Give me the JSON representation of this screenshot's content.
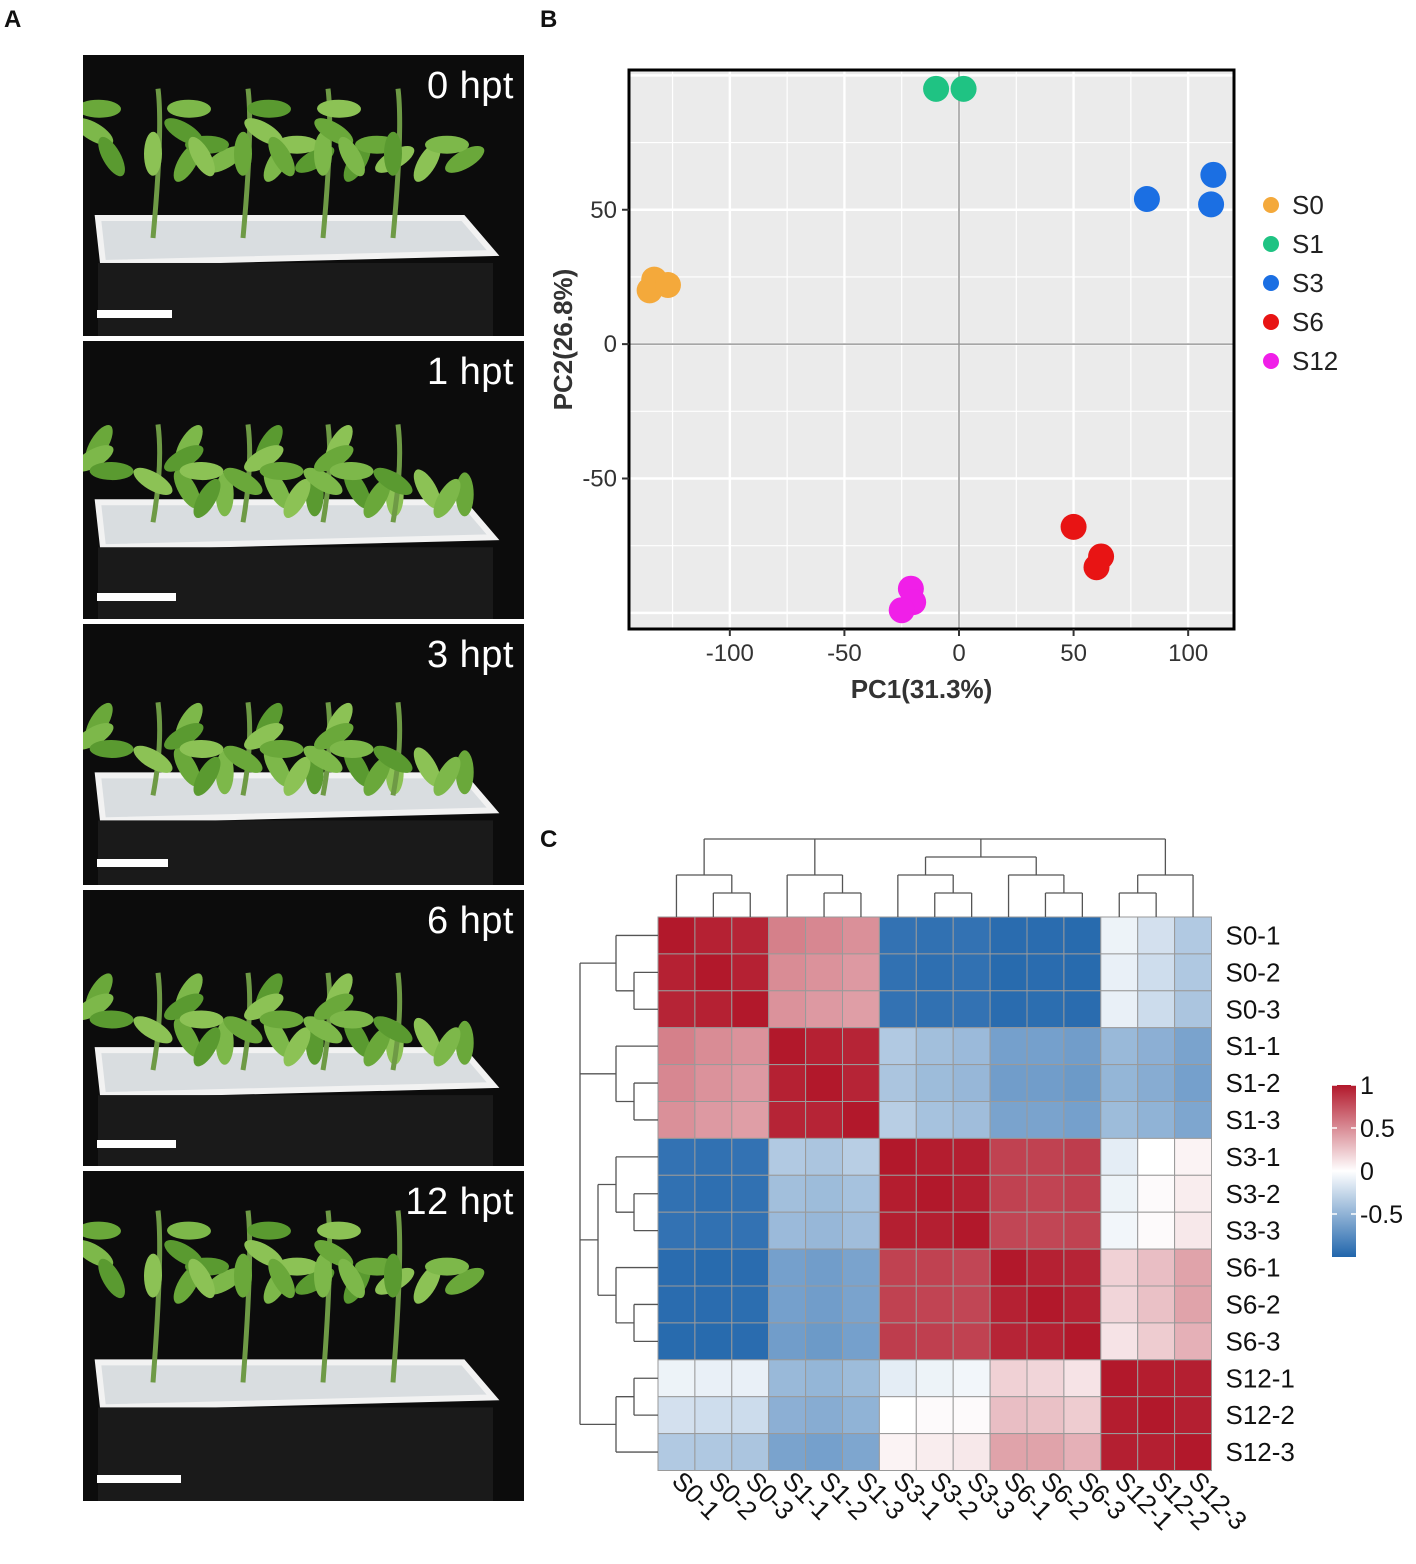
{
  "panel_a": {
    "letter": "A",
    "photos": [
      {
        "label": "0 hpt",
        "state": "upright",
        "scale_bar_rel": 0.17
      },
      {
        "label": "1 hpt",
        "state": "wilted",
        "scale_bar_rel": 0.18
      },
      {
        "label": "3 hpt",
        "state": "wilted",
        "scale_bar_rel": 0.16
      },
      {
        "label": "6 hpt",
        "state": "wilted",
        "scale_bar_rel": 0.18
      },
      {
        "label": "12 hpt",
        "state": "recovered",
        "scale_bar_rel": 0.19
      }
    ]
  },
  "panel_b": {
    "letter": "B",
    "chart_data": {
      "type": "scatter",
      "xlabel": "PC1(31.3%)",
      "ylabel": "PC2(26.8%)",
      "xlim": [
        -144,
        120
      ],
      "ylim": [
        -106,
        102
      ],
      "xticks": [
        -100,
        -50,
        0,
        50,
        100
      ],
      "yticks": [
        -50,
        0,
        50
      ],
      "grid": true,
      "background": "#ebebeb",
      "legend_position": "right",
      "series": [
        {
          "name": "S0",
          "color": "#f4a93b",
          "points": [
            [
              -135,
              20
            ],
            [
              -133,
              24
            ],
            [
              -127,
              22
            ]
          ]
        },
        {
          "name": "S1",
          "color": "#1fc383",
          "points": [
            [
              -10,
              95
            ],
            [
              2,
              95
            ]
          ]
        },
        {
          "name": "S3",
          "color": "#1b6fe3",
          "points": [
            [
              82,
              54
            ],
            [
              110,
              52
            ],
            [
              111,
              63
            ]
          ]
        },
        {
          "name": "S6",
          "color": "#e81414",
          "points": [
            [
              50,
              -68
            ],
            [
              62,
              -79
            ],
            [
              60,
              -83
            ]
          ]
        },
        {
          "name": "S12",
          "color": "#f01fe8",
          "points": [
            [
              -21,
              -91
            ],
            [
              -20,
              -96
            ],
            [
              -25,
              -99
            ]
          ]
        }
      ]
    }
  },
  "panel_c": {
    "letter": "C",
    "chart_data": {
      "type": "heatmap",
      "rows": [
        "S0-1",
        "S0-2",
        "S0-3",
        "S1-1",
        "S1-2",
        "S1-3",
        "S3-1",
        "S3-2",
        "S3-3",
        "S6-1",
        "S6-2",
        "S6-3",
        "S12-1",
        "S12-2",
        "S12-3"
      ],
      "cols": [
        "S0-1",
        "S0-2",
        "S0-3",
        "S1-1",
        "S1-2",
        "S1-3",
        "S3-1",
        "S3-2",
        "S3-3",
        "S6-1",
        "S6-2",
        "S6-3",
        "S12-1",
        "S12-2",
        "S12-3"
      ],
      "values": [
        [
          1.0,
          0.96,
          0.95,
          0.55,
          0.52,
          0.48,
          -0.92,
          -0.93,
          -0.92,
          -0.96,
          -0.96,
          -0.97,
          -0.08,
          -0.2,
          -0.35
        ],
        [
          0.96,
          1.0,
          0.96,
          0.5,
          0.47,
          0.44,
          -0.93,
          -0.94,
          -0.93,
          -0.97,
          -0.96,
          -0.97,
          -0.1,
          -0.22,
          -0.36
        ],
        [
          0.95,
          0.96,
          1.0,
          0.47,
          0.44,
          0.42,
          -0.92,
          -0.93,
          -0.92,
          -0.96,
          -0.95,
          -0.96,
          -0.1,
          -0.23,
          -0.38
        ],
        [
          0.55,
          0.5,
          0.47,
          1.0,
          0.96,
          0.95,
          -0.35,
          -0.42,
          -0.45,
          -0.62,
          -0.62,
          -0.64,
          -0.46,
          -0.52,
          -0.6
        ],
        [
          0.52,
          0.47,
          0.44,
          0.96,
          1.0,
          0.95,
          -0.38,
          -0.44,
          -0.47,
          -0.64,
          -0.64,
          -0.66,
          -0.48,
          -0.54,
          -0.62
        ],
        [
          0.48,
          0.44,
          0.42,
          0.95,
          0.95,
          1.0,
          -0.32,
          -0.4,
          -0.43,
          -0.6,
          -0.6,
          -0.62,
          -0.44,
          -0.5,
          -0.58
        ],
        [
          -0.92,
          -0.93,
          -0.92,
          -0.35,
          -0.38,
          -0.32,
          1.0,
          0.98,
          0.97,
          0.82,
          0.82,
          0.84,
          -0.12,
          0.0,
          0.05
        ],
        [
          -0.93,
          -0.94,
          -0.93,
          -0.42,
          -0.44,
          -0.4,
          0.98,
          1.0,
          0.97,
          0.82,
          0.81,
          0.83,
          -0.08,
          0.02,
          0.08
        ],
        [
          -0.92,
          -0.93,
          -0.92,
          -0.45,
          -0.47,
          -0.43,
          0.97,
          0.97,
          1.0,
          0.8,
          0.8,
          0.82,
          -0.06,
          0.02,
          0.1
        ],
        [
          -0.96,
          -0.97,
          -0.96,
          -0.62,
          -0.64,
          -0.6,
          0.82,
          0.82,
          0.8,
          1.0,
          0.96,
          0.95,
          0.2,
          0.28,
          0.4
        ],
        [
          -0.96,
          -0.96,
          -0.95,
          -0.62,
          -0.64,
          -0.6,
          0.82,
          0.81,
          0.8,
          0.96,
          1.0,
          0.96,
          0.18,
          0.27,
          0.4
        ],
        [
          -0.97,
          -0.97,
          -0.96,
          -0.64,
          -0.66,
          -0.62,
          0.84,
          0.83,
          0.82,
          0.95,
          0.96,
          1.0,
          0.12,
          0.22,
          0.34
        ],
        [
          -0.08,
          -0.1,
          -0.1,
          -0.46,
          -0.48,
          -0.44,
          -0.12,
          -0.08,
          -0.06,
          0.2,
          0.18,
          0.12,
          1.0,
          0.98,
          0.97
        ],
        [
          -0.2,
          -0.22,
          -0.23,
          -0.52,
          -0.54,
          -0.5,
          0.0,
          0.02,
          0.02,
          0.28,
          0.27,
          0.22,
          0.98,
          1.0,
          0.97
        ],
        [
          -0.35,
          -0.36,
          -0.38,
          -0.6,
          -0.62,
          -0.58,
          0.05,
          0.08,
          0.1,
          0.4,
          0.4,
          0.34,
          0.97,
          0.97,
          1.0
        ]
      ],
      "color_scale": {
        "low": "#2166ac",
        "mid": "#ffffff",
        "high": "#b2182b",
        "min": -1,
        "max": 1
      },
      "legend_ticks": [
        "1",
        "0.5",
        "0",
        "-0.5"
      ],
      "legend_tick_values": [
        1,
        0.5,
        0,
        -0.5
      ],
      "dendrogram": {
        "col": [
          [
            0,
            [
              1,
              2
            ]
          ],
          [
            3,
            [
              4,
              5
            ]
          ],
          [
            [
              6,
              [
                7,
                8
              ]
            ],
            [
              9,
              [
                10,
                11
              ]
            ]
          ],
          [
            [
              12,
              13
            ],
            14
          ]
        ],
        "row": [
          [
            0,
            [
              1,
              2
            ]
          ],
          [
            3,
            [
              4,
              5
            ]
          ],
          [
            [
              6,
              [
                7,
                8
              ]
            ],
            [
              9,
              [
                10,
                11
              ]
            ]
          ],
          [
            [
              12,
              13
            ],
            14
          ]
        ]
      }
    }
  }
}
